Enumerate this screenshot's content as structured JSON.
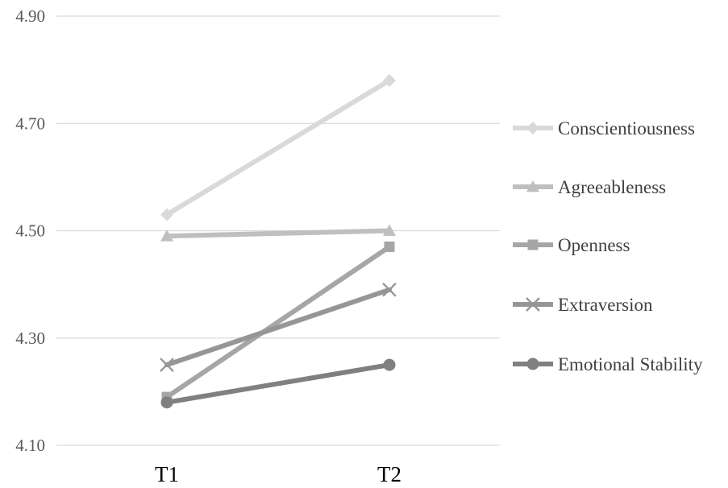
{
  "chart_data": {
    "type": "line",
    "title": "",
    "xlabel": "",
    "ylabel": "",
    "categories": [
      "T1",
      "T2"
    ],
    "ylim": [
      4.1,
      4.9
    ],
    "yticks": [
      "4.10",
      "4.30",
      "4.50",
      "4.70",
      "4.90"
    ],
    "grid": true,
    "legend_position": "right",
    "series": [
      {
        "name": "Conscientiousness",
        "values": [
          4.53,
          4.78
        ],
        "color": "#d9d9d9",
        "marker": "diamond"
      },
      {
        "name": "Agreeableness",
        "values": [
          4.49,
          4.5
        ],
        "color": "#bfbfbf",
        "marker": "triangle"
      },
      {
        "name": "Openness",
        "values": [
          4.19,
          4.47
        ],
        "color": "#a6a6a6",
        "marker": "square"
      },
      {
        "name": "Extraversion",
        "values": [
          4.25,
          4.39
        ],
        "color": "#969696",
        "marker": "x"
      },
      {
        "name": "Emotional Stability",
        "values": [
          4.18,
          4.25
        ],
        "color": "#808080",
        "marker": "circle"
      }
    ]
  }
}
